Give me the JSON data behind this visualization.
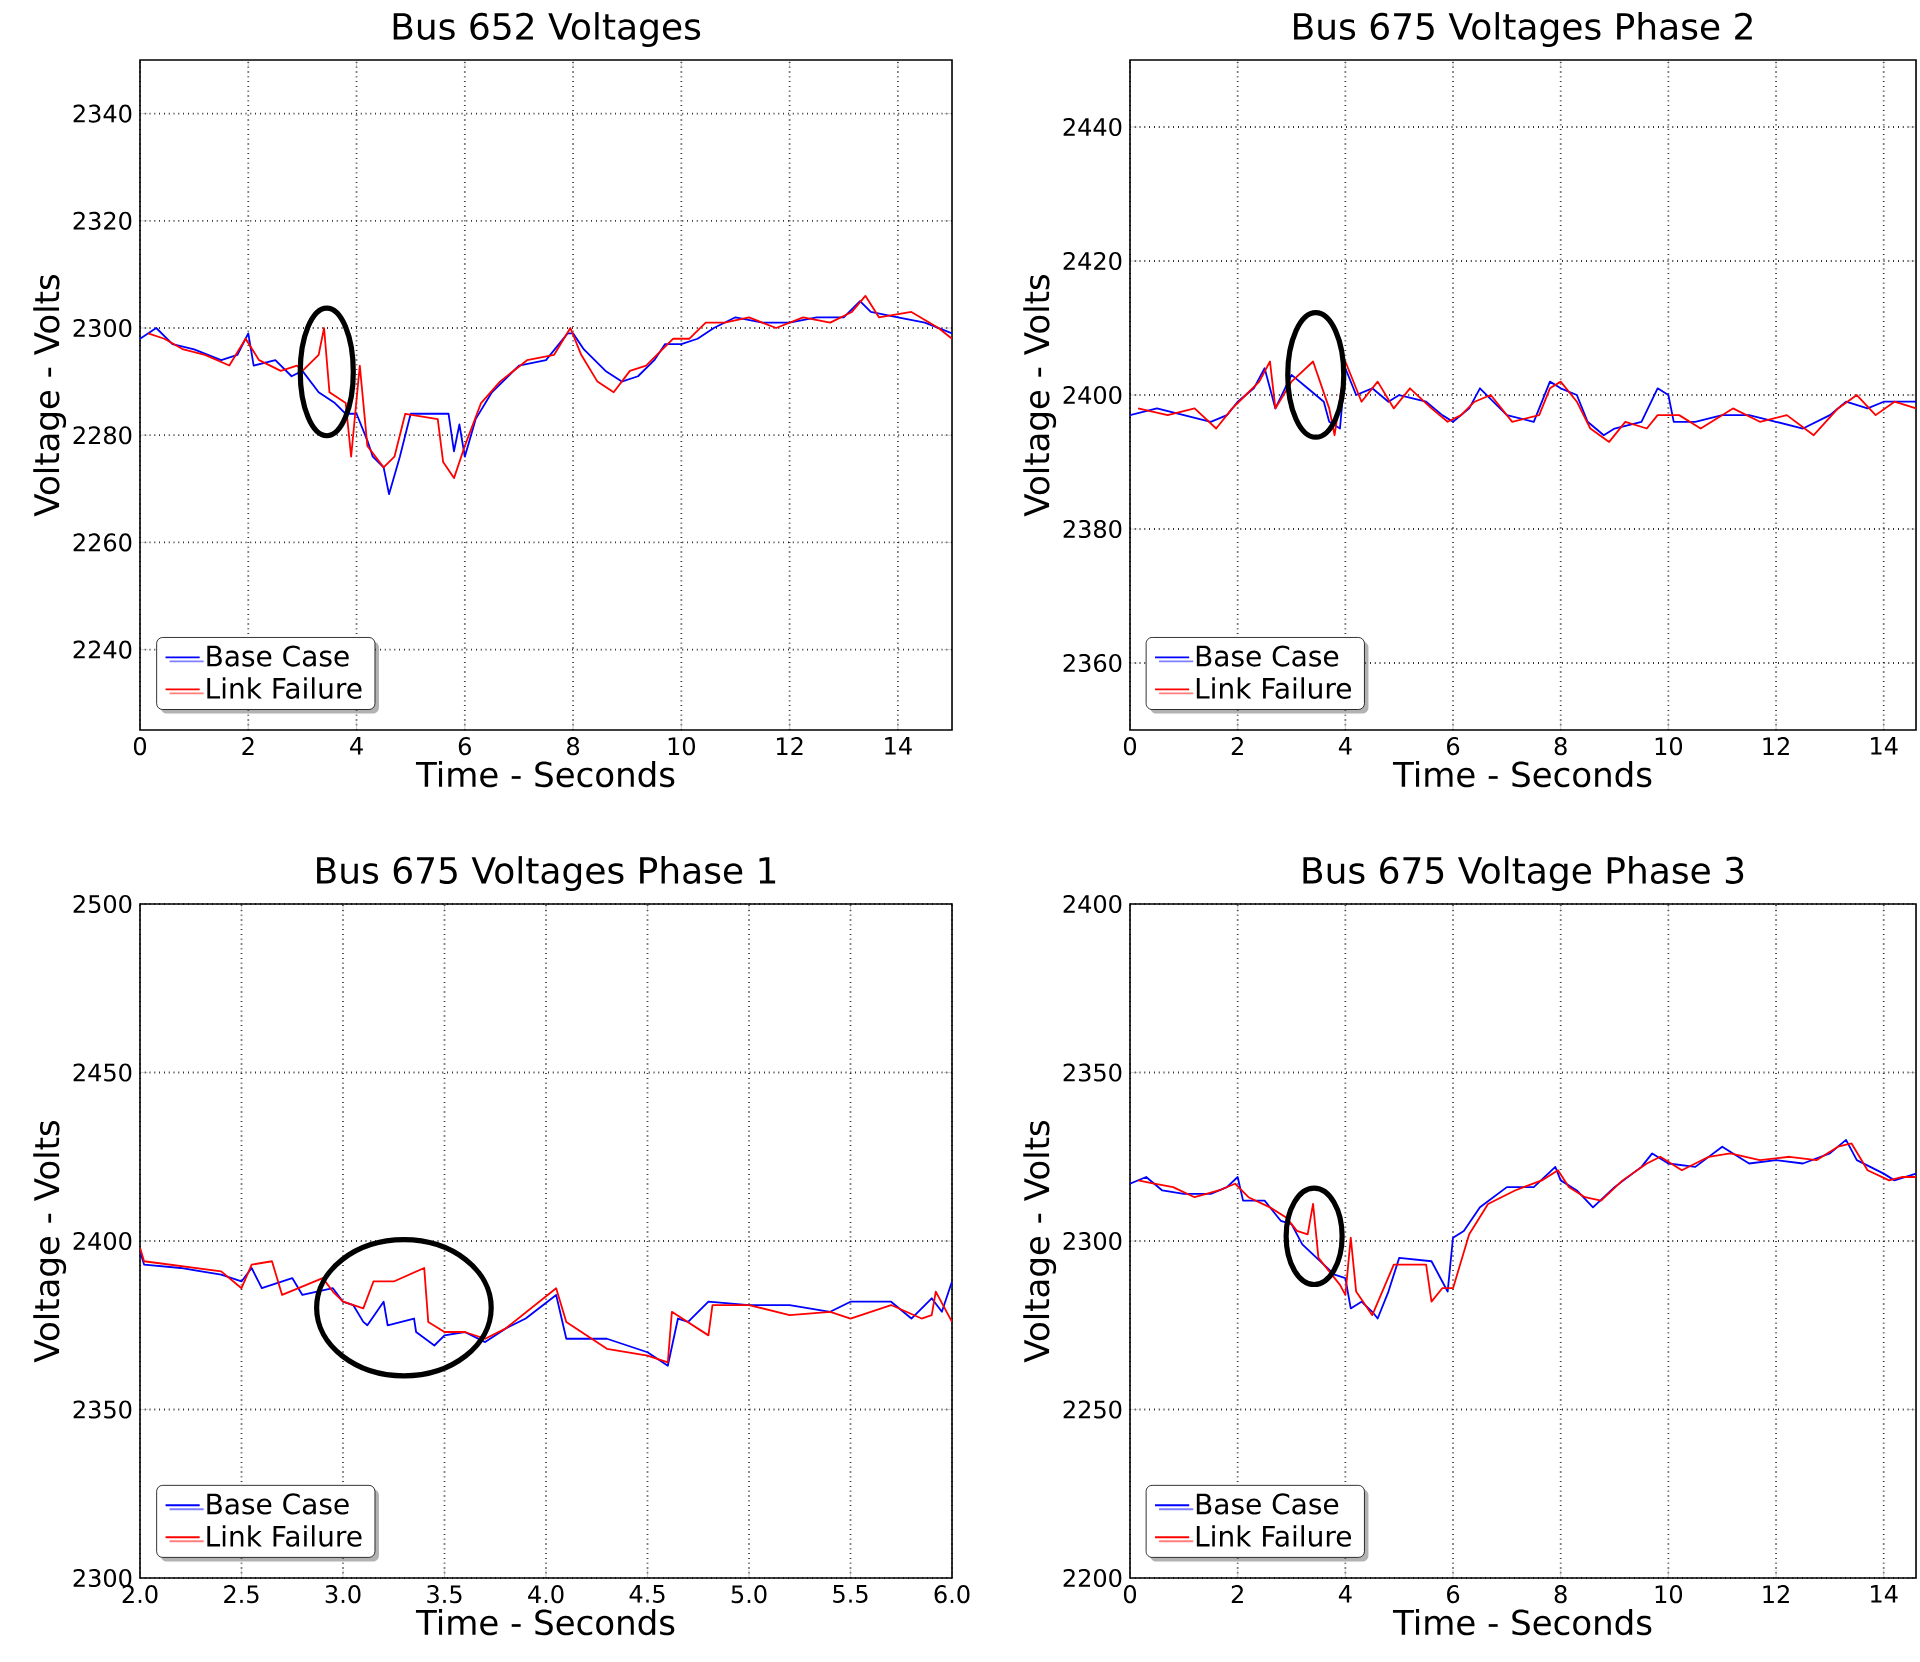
{
  "chart_data": [
    {
      "type": "line",
      "title": "Bus 652 Voltages",
      "xlabel": "Time - Seconds",
      "ylabel": "Voltage - Volts",
      "xlim": [
        0,
        15
      ],
      "ylim": [
        2225,
        2350
      ],
      "xticks": [
        0,
        2,
        4,
        6,
        8,
        10,
        12,
        14
      ],
      "yticks": [
        2240,
        2260,
        2280,
        2300,
        2320,
        2340
      ],
      "grid": true,
      "legend": "bottom left",
      "series": [
        {
          "name": "Base Case",
          "color": "#0000ff",
          "x": [
            0,
            0.3,
            0.6,
            1.0,
            1.5,
            1.8,
            2.0,
            2.1,
            2.5,
            2.8,
            3.0,
            3.3,
            3.6,
            3.8,
            4.0,
            4.2,
            4.3,
            4.5,
            4.6,
            4.8,
            5.0,
            5.7,
            5.8,
            5.9,
            6.0,
            6.2,
            6.5,
            7.0,
            7.5,
            7.9,
            8.0,
            8.2,
            8.6,
            8.9,
            9.2,
            9.5,
            9.7,
            10.0,
            10.3,
            10.6,
            11.0,
            11.5,
            12.0,
            12.5,
            13.0,
            13.3,
            13.5,
            14.0,
            14.5,
            15.0
          ],
          "values": [
            2298,
            2300,
            2297,
            2296,
            2294,
            2295,
            2299,
            2293,
            2294,
            2291,
            2292,
            2288,
            2286,
            2284,
            2284,
            2279,
            2276,
            2274,
            2269,
            2276,
            2284,
            2284,
            2277,
            2282,
            2276,
            2283,
            2288,
            2293,
            2294,
            2299,
            2299,
            2296,
            2292,
            2290,
            2291,
            2294,
            2297,
            2297,
            2298,
            2300,
            2302,
            2301,
            2301,
            2302,
            2302,
            2305,
            2303,
            2302,
            2301,
            2299
          ]
        },
        {
          "name": "Link Failure",
          "color": "#ff0000",
          "x": [
            0.15,
            0.45,
            0.8,
            1.2,
            1.65,
            1.95,
            2.2,
            2.6,
            2.9,
            3.0,
            3.3,
            3.4,
            3.5,
            3.8,
            3.9,
            4.06,
            4.2,
            4.5,
            4.7,
            4.9,
            5.5,
            5.6,
            5.8,
            6.0,
            6.3,
            6.65,
            7.15,
            7.65,
            7.95,
            8.15,
            8.45,
            8.75,
            9.05,
            9.35,
            9.65,
            9.85,
            10.15,
            10.45,
            10.8,
            11.25,
            11.75,
            12.25,
            12.75,
            13.15,
            13.4,
            13.65,
            14.25,
            14.75,
            15.0
          ],
          "values": [
            2299,
            2298,
            2296,
            2295,
            2293,
            2298,
            2294,
            2292,
            2293,
            2292,
            2295,
            2300,
            2288,
            2286,
            2276,
            2293,
            2278,
            2274,
            2276,
            2284,
            2283,
            2275,
            2272,
            2278,
            2286,
            2290,
            2294,
            2295,
            2300,
            2295,
            2290,
            2288,
            2292,
            2293,
            2296,
            2298,
            2298,
            2301,
            2301,
            2302,
            2300,
            2302,
            2301,
            2303,
            2306,
            2302,
            2303,
            2300,
            2298
          ]
        }
      ]
    },
    {
      "type": "line",
      "title": "Bus 675 Voltages Phase 2",
      "xlabel": "Time - Seconds",
      "ylabel": "Voltage - Volts",
      "xlim": [
        0,
        14.6
      ],
      "ylim": [
        2350,
        2450
      ],
      "xticks": [
        0,
        2,
        4,
        6,
        8,
        10,
        12,
        14
      ],
      "yticks": [
        2360,
        2380,
        2400,
        2420,
        2440
      ],
      "grid": true,
      "legend": "bottom left",
      "series": [
        {
          "name": "Base Case",
          "color": "#0000ff",
          "x": [
            0,
            0.5,
            1.0,
            1.5,
            1.8,
            2.0,
            2.3,
            2.5,
            2.7,
            3.0,
            3.3,
            3.6,
            3.7,
            3.9,
            4.0,
            4.2,
            4.5,
            4.8,
            5.0,
            5.5,
            5.8,
            6.0,
            6.3,
            6.5,
            7.0,
            7.5,
            7.8,
            8.0,
            8.3,
            8.5,
            8.8,
            9.0,
            9.5,
            9.8,
            10.0,
            10.1,
            10.5,
            11.0,
            11.5,
            12.0,
            12.5,
            13.0,
            13.3,
            13.7,
            14.0,
            14.6
          ],
          "values": [
            2397,
            2398,
            2397,
            2396,
            2397,
            2399,
            2401,
            2404,
            2398,
            2403,
            2401,
            2399,
            2396,
            2395,
            2404,
            2400,
            2401,
            2399,
            2400,
            2399,
            2397,
            2396,
            2398,
            2401,
            2397,
            2396,
            2402,
            2401,
            2400,
            2396,
            2394,
            2395,
            2396,
            2401,
            2400,
            2396,
            2396,
            2397,
            2397,
            2396,
            2395,
            2397,
            2399,
            2398,
            2399,
            2399
          ]
        },
        {
          "name": "Link Failure",
          "color": "#ff0000",
          "x": [
            0.15,
            0.7,
            1.2,
            1.6,
            1.9,
            2.15,
            2.4,
            2.6,
            2.7,
            3.0,
            3.4,
            3.7,
            3.8,
            4.0,
            4.3,
            4.6,
            4.9,
            5.2,
            5.6,
            5.9,
            6.15,
            6.4,
            6.7,
            7.1,
            7.6,
            7.8,
            8.0,
            8.3,
            8.55,
            8.9,
            9.2,
            9.6,
            9.8,
            10.2,
            10.6,
            11.2,
            11.7,
            12.2,
            12.7,
            13.15,
            13.5,
            13.85,
            14.2,
            14.6
          ],
          "values": [
            2398,
            2397,
            2398,
            2395,
            2398,
            2400,
            2402,
            2405,
            2398,
            2402,
            2405,
            2398,
            2394,
            2405,
            2399,
            2402,
            2398,
            2401,
            2398,
            2396,
            2397,
            2399,
            2400,
            2396,
            2397,
            2401,
            2402,
            2399,
            2395,
            2393,
            2396,
            2395,
            2397,
            2397,
            2395,
            2398,
            2396,
            2397,
            2394,
            2398,
            2400,
            2397,
            2399,
            2398
          ]
        }
      ]
    },
    {
      "type": "line",
      "title": "Bus 675 Voltages Phase 1",
      "xlabel": "Time - Seconds",
      "ylabel": "Voltage - Volts",
      "xlim": [
        2.0,
        6.0
      ],
      "ylim": [
        2300,
        2500
      ],
      "xticks": [
        {
          "value": 2.0,
          "label": "2.0"
        },
        {
          "value": 2.5,
          "label": "2.5"
        },
        {
          "value": 3.0,
          "label": "3.0"
        },
        {
          "value": 3.5,
          "label": "3.5"
        },
        {
          "value": 4.0,
          "label": "4.0"
        },
        {
          "value": 4.5,
          "label": "4.5"
        },
        {
          "value": 5.0,
          "label": "5.0"
        },
        {
          "value": 5.5,
          "label": "5.5"
        },
        {
          "value": 6.0,
          "label": "6.0"
        }
      ],
      "yticks": [
        2300,
        2350,
        2400,
        2450,
        2500
      ],
      "grid": true,
      "legend": "bottom left",
      "series": [
        {
          "name": "Base Case",
          "color": "#0000ff",
          "x": [
            2.0,
            2.02,
            2.2,
            2.4,
            2.5,
            2.55,
            2.6,
            2.75,
            2.8,
            2.95,
            3.0,
            3.05,
            3.1,
            3.12,
            3.2,
            3.22,
            3.35,
            3.36,
            3.45,
            3.5,
            3.6,
            3.7,
            3.8,
            3.9,
            4.05,
            4.1,
            4.3,
            4.5,
            4.6,
            4.65,
            4.7,
            4.8,
            5.0,
            5.2,
            5.4,
            5.5,
            5.7,
            5.8,
            5.9,
            5.95,
            6.0
          ],
          "values": [
            2397,
            2393,
            2392,
            2390,
            2388,
            2392,
            2386,
            2389,
            2384,
            2386,
            2382,
            2381,
            2376,
            2375,
            2382,
            2375,
            2377,
            2373,
            2369,
            2372,
            2373,
            2370,
            2374,
            2377,
            2384,
            2371,
            2371,
            2367,
            2363,
            2377,
            2376,
            2382,
            2381,
            2381,
            2379,
            2382,
            2382,
            2377,
            2383,
            2379,
            2388
          ]
        },
        {
          "name": "Link Failure",
          "color": "#ff0000",
          "x": [
            2.0,
            2.02,
            2.4,
            2.5,
            2.55,
            2.65,
            2.7,
            2.9,
            2.95,
            3.0,
            3.1,
            3.15,
            3.25,
            3.4,
            3.42,
            3.5,
            3.6,
            3.7,
            3.8,
            4.05,
            4.1,
            4.3,
            4.5,
            4.6,
            4.62,
            4.8,
            4.82,
            5.0,
            5.2,
            5.4,
            5.5,
            5.7,
            5.85,
            5.9,
            5.92,
            6.0
          ],
          "values": [
            2398,
            2394,
            2391,
            2386,
            2393,
            2394,
            2384,
            2389,
            2385,
            2382,
            2380,
            2388,
            2388,
            2392,
            2376,
            2373,
            2373,
            2371,
            2374,
            2386,
            2376,
            2368,
            2366,
            2364,
            2379,
            2372,
            2381,
            2381,
            2378,
            2379,
            2377,
            2381,
            2377,
            2378,
            2385,
            2376
          ]
        }
      ]
    },
    {
      "type": "line",
      "title": "Bus 675 Voltage Phase 3",
      "xlabel": "Time - Seconds",
      "ylabel": "Voltage - Volts",
      "xlim": [
        0,
        14.6
      ],
      "ylim": [
        2200,
        2400
      ],
      "xticks": [
        0,
        2,
        4,
        6,
        8,
        10,
        12,
        14
      ],
      "yticks": [
        2200,
        2250,
        2300,
        2350,
        2400
      ],
      "grid": true,
      "legend": "bottom left",
      "series": [
        {
          "name": "Base Case",
          "color": "#0000ff",
          "x": [
            0,
            0.3,
            0.6,
            1.0,
            1.5,
            1.8,
            2.0,
            2.1,
            2.5,
            2.8,
            3.0,
            3.2,
            3.4,
            3.6,
            3.8,
            4.0,
            4.1,
            4.3,
            4.5,
            4.6,
            4.8,
            5.0,
            5.6,
            5.8,
            5.9,
            6.0,
            6.2,
            6.5,
            7.0,
            7.5,
            7.9,
            8.0,
            8.3,
            8.6,
            9.0,
            9.5,
            9.7,
            10.0,
            10.5,
            11.0,
            11.5,
            12.0,
            12.5,
            13.0,
            13.3,
            13.5,
            14.0,
            14.2,
            14.6
          ],
          "values": [
            2317,
            2319,
            2315,
            2314,
            2314,
            2316,
            2319,
            2312,
            2312,
            2306,
            2305,
            2299,
            2296,
            2293,
            2290,
            2289,
            2280,
            2282,
            2279,
            2277,
            2285,
            2295,
            2294,
            2288,
            2285,
            2301,
            2303,
            2310,
            2316,
            2316,
            2322,
            2318,
            2315,
            2310,
            2316,
            2322,
            2326,
            2323,
            2322,
            2328,
            2323,
            2324,
            2323,
            2326,
            2330,
            2324,
            2320,
            2318,
            2320
          ]
        },
        {
          "name": "Link Failure",
          "color": "#ff0000",
          "x": [
            0.15,
            0.45,
            0.8,
            1.2,
            1.65,
            1.95,
            2.2,
            2.6,
            2.9,
            3.1,
            3.3,
            3.4,
            3.5,
            3.9,
            4.0,
            4.1,
            4.2,
            4.5,
            4.9,
            5.5,
            5.6,
            5.8,
            6.0,
            6.3,
            6.65,
            7.15,
            7.65,
            7.95,
            8.15,
            8.45,
            8.75,
            9.15,
            9.6,
            9.85,
            10.25,
            10.75,
            11.15,
            11.7,
            12.25,
            12.75,
            13.15,
            13.4,
            13.7,
            14.1,
            14.35,
            14.6
          ],
          "values": [
            2318,
            2317,
            2316,
            2313,
            2315,
            2317,
            2313,
            2310,
            2307,
            2303,
            2302,
            2311,
            2295,
            2287,
            2284,
            2301,
            2285,
            2278,
            2293,
            2293,
            2282,
            2286,
            2286,
            2302,
            2311,
            2315,
            2318,
            2321,
            2316,
            2313,
            2312,
            2318,
            2323,
            2325,
            2321,
            2325,
            2326,
            2324,
            2325,
            2324,
            2328,
            2329,
            2321,
            2318,
            2319,
            2319
          ]
        }
      ]
    }
  ]
}
